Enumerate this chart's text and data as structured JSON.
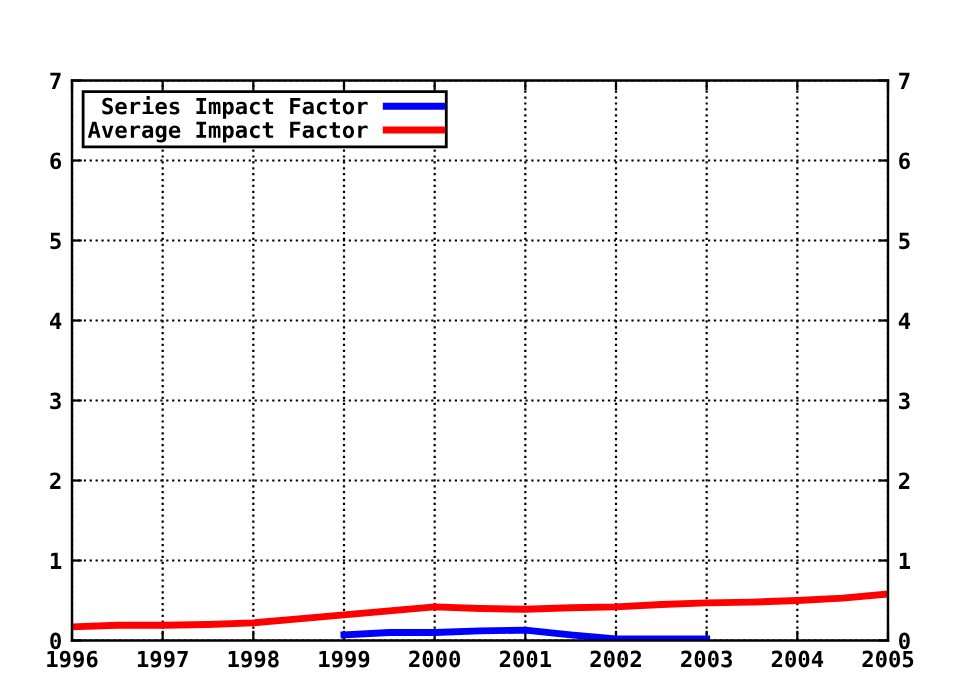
{
  "chart_data": {
    "type": "line",
    "series": [
      {
        "name": "Series Impact Factor",
        "color": "#0000ff",
        "x": [
          1999,
          1999.5,
          2000,
          2000.5,
          2001,
          2001.5,
          2002,
          2002.5,
          2003
        ],
        "values": [
          0.07,
          0.1,
          0.1,
          0.12,
          0.13,
          0.07,
          0.02,
          0.02,
          0.02
        ]
      },
      {
        "name": "Average Impact Factor",
        "color": "#ff0000",
        "x": [
          1996,
          1996.5,
          1997,
          1997.5,
          1998,
          1998.5,
          1999,
          1999.5,
          2000,
          2000.5,
          2001,
          2001.5,
          2002,
          2002.5,
          2003,
          2003.5,
          2004,
          2004.5,
          2005
        ],
        "values": [
          0.17,
          0.19,
          0.19,
          0.2,
          0.22,
          0.27,
          0.32,
          0.37,
          0.42,
          0.4,
          0.39,
          0.41,
          0.42,
          0.45,
          0.47,
          0.48,
          0.5,
          0.53,
          0.58
        ]
      }
    ],
    "xlim": [
      1996,
      2005
    ],
    "xticks": [
      1996,
      1997,
      1998,
      1999,
      2000,
      2001,
      2002,
      2003,
      2004,
      2005
    ],
    "ylim": [
      0,
      7
    ],
    "yticks": [
      0,
      1,
      2,
      3,
      4,
      5,
      6,
      7
    ],
    "y2lim": [
      0,
      7
    ],
    "y2ticks": [
      0,
      1,
      2,
      3,
      4,
      5,
      6,
      7
    ],
    "grid": true,
    "legend": "top left",
    "line_style": "solid",
    "marker": "none"
  }
}
